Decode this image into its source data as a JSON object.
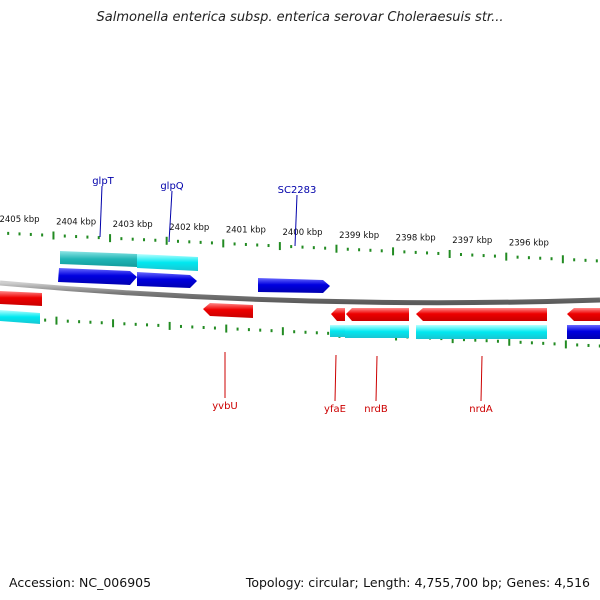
{
  "title": "Salmonella enterica subsp. enterica serovar Choleraesuis str...",
  "footer": {
    "accession": "Accession: NC_006905",
    "topology": "Topology: circular;",
    "length": "Length: 4,755,700 bp;",
    "genes": "Genes: 4,516"
  },
  "kbp_labels": [
    "2405 kbp",
    "2404 kbp",
    "2403 kbp",
    "2402 kbp",
    "2401 kbp",
    "2400 kbp",
    "2399 kbp",
    "2398 kbp",
    "2397 kbp",
    "2396 kbp"
  ],
  "colors": {
    "forward_gene": "#0000dd",
    "reverse_gene": "#ee0000",
    "cds_cyan": "#00e5ee",
    "cds_teal": "#1fbdbd",
    "backbone": "#808080",
    "ticks": "#228b22",
    "top_label": "#0000aa",
    "bottom_label": "#cc0000"
  },
  "gene_labels_top": [
    "glpT",
    "glpQ",
    "SC2283"
  ],
  "gene_labels_bottom": [
    "yvbU",
    "yfaE",
    "nrdB",
    "nrdA"
  ]
}
